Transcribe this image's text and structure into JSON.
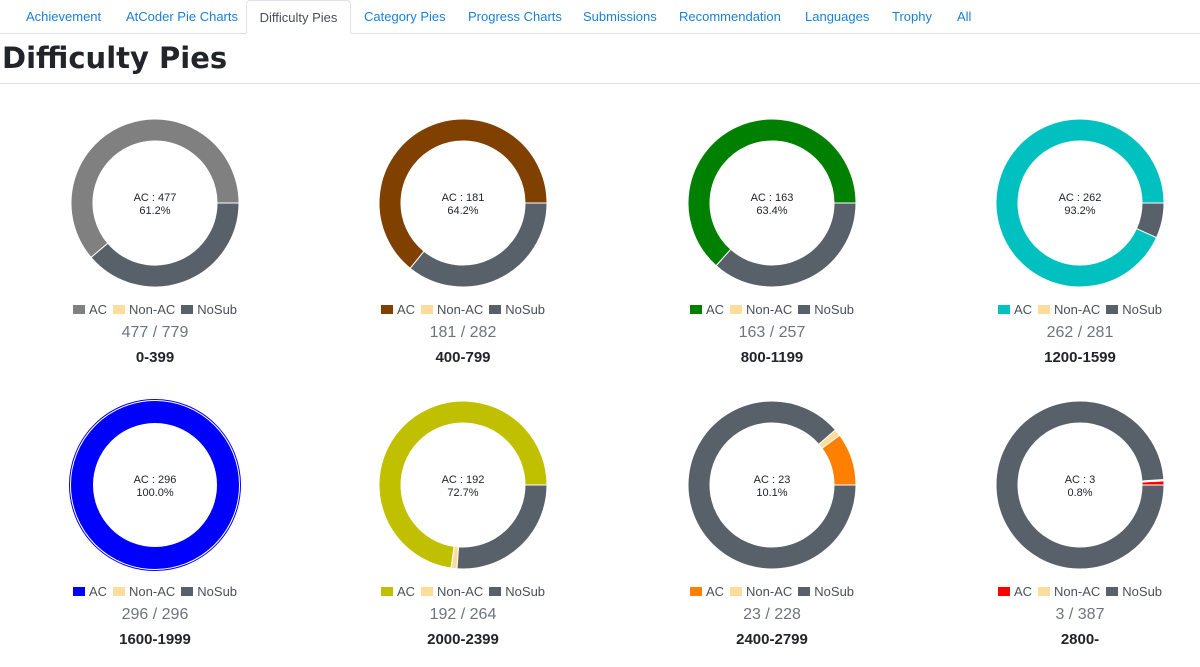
{
  "tabs": [
    {
      "label": "Achievement",
      "active": false
    },
    {
      "label": "AtCoder Pie Charts",
      "active": false
    },
    {
      "label": "Difficulty Pies",
      "active": true
    },
    {
      "label": "Category Pies",
      "active": false
    },
    {
      "label": "Progress Charts",
      "active": false
    },
    {
      "label": "Submissions",
      "active": false
    },
    {
      "label": "Recommendation",
      "active": false
    },
    {
      "label": "Languages",
      "active": false
    },
    {
      "label": "Trophy",
      "active": false
    },
    {
      "label": "All",
      "active": false
    }
  ],
  "page_title": "Difficulty Pies",
  "legend_labels": {
    "ac": "AC",
    "nonac": "Non-AC",
    "nosub": "NoSub"
  },
  "colors": {
    "nonac": "#fddc9c",
    "nosub": "#58616a",
    "tab_link": "#1a7fd6"
  },
  "chart_data": [
    {
      "type": "pie",
      "title": "0-399",
      "center_line1": "AC : 477",
      "center_line2": "61.2%",
      "ratio": "477 / 779",
      "ac_color": "#808080",
      "values": {
        "ac": 477,
        "nonac": 0,
        "nosub": 302
      }
    },
    {
      "type": "pie",
      "title": "400-799",
      "center_line1": "AC : 181",
      "center_line2": "64.2%",
      "ratio": "181 / 282",
      "ac_color": "#804000",
      "values": {
        "ac": 181,
        "nonac": 0,
        "nosub": 101
      }
    },
    {
      "type": "pie",
      "title": "800-1199",
      "center_line1": "AC : 163",
      "center_line2": "63.4%",
      "ratio": "163 / 257",
      "ac_color": "#008000",
      "values": {
        "ac": 163,
        "nonac": 0,
        "nosub": 94
      }
    },
    {
      "type": "pie",
      "title": "1200-1599",
      "center_line1": "AC : 262",
      "center_line2": "93.2%",
      "ratio": "262 / 281",
      "ac_color": "#00c0c0",
      "values": {
        "ac": 262,
        "nonac": 0,
        "nosub": 19
      }
    },
    {
      "type": "pie",
      "title": "1600-1999",
      "center_line1": "AC : 296",
      "center_line2": "100.0%",
      "ratio": "296 / 296",
      "ac_color": "#0000ff",
      "values": {
        "ac": 296,
        "nonac": 0,
        "nosub": 0
      }
    },
    {
      "type": "pie",
      "title": "2000-2399",
      "center_line1": "AC : 192",
      "center_line2": "72.7%",
      "ratio": "192 / 264",
      "ac_color": "#c0c000",
      "values": {
        "ac": 192,
        "nonac": 3,
        "nosub": 69
      }
    },
    {
      "type": "pie",
      "title": "2400-2799",
      "center_line1": "AC : 23",
      "center_line2": "10.1%",
      "ratio": "23 / 228",
      "ac_color": "#ff8000",
      "values": {
        "ac": 23,
        "nonac": 3,
        "nosub": 202
      }
    },
    {
      "type": "pie",
      "title": "2800-",
      "center_line1": "AC : 3",
      "center_line2": "0.8%",
      "ratio": "3 / 387",
      "ac_color": "#ff0000",
      "values": {
        "ac": 3,
        "nonac": 1,
        "nosub": 383
      }
    }
  ]
}
